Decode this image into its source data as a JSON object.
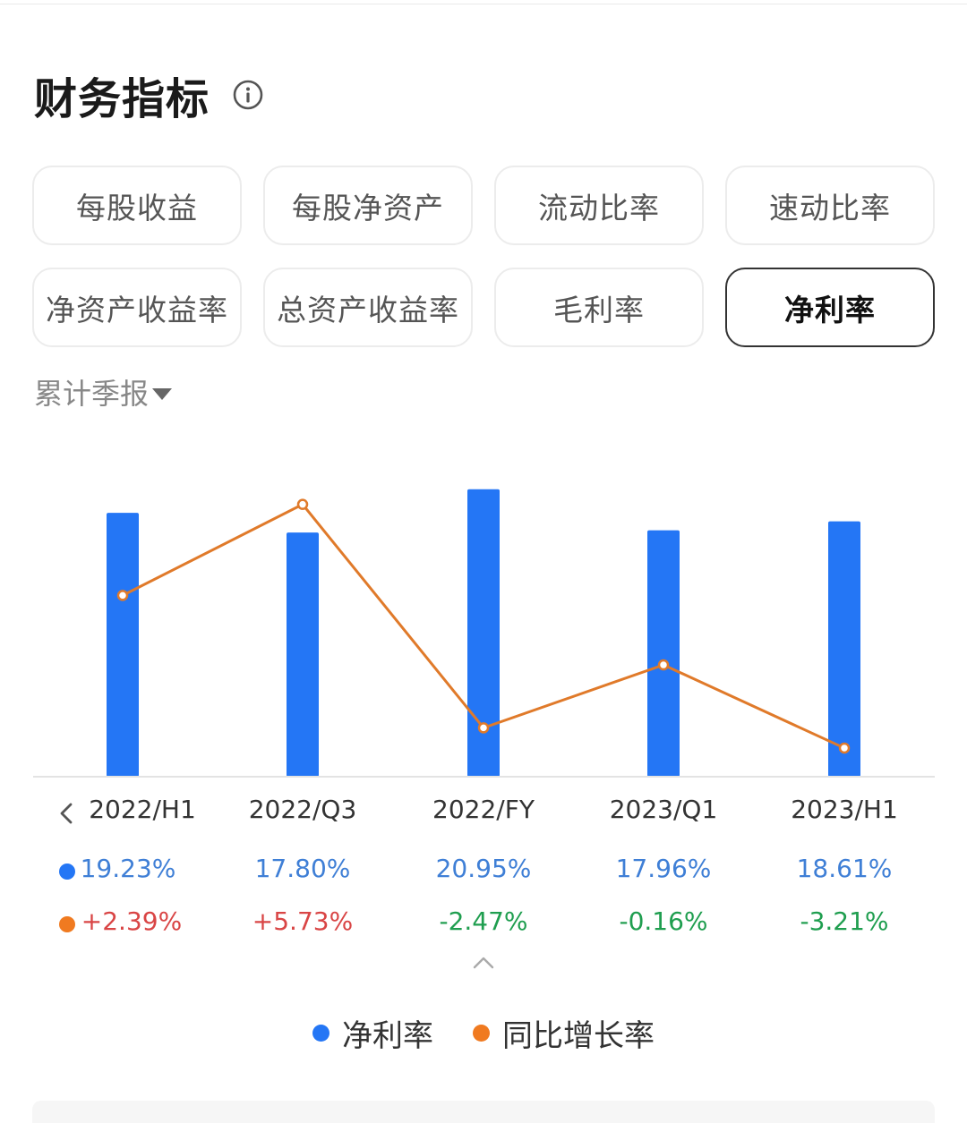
{
  "header": {
    "title": "财务指标",
    "info_icon": "info-icon"
  },
  "tabs": [
    {
      "label": "每股收益",
      "active": false
    },
    {
      "label": "每股净资产",
      "active": false
    },
    {
      "label": "流动比率",
      "active": false
    },
    {
      "label": "速动比率",
      "active": false
    },
    {
      "label": "净资产收益率",
      "active": false
    },
    {
      "label": "总资产收益率",
      "active": false
    },
    {
      "label": "毛利率",
      "active": false
    },
    {
      "label": "净利率",
      "active": true
    }
  ],
  "period_selector": {
    "label": "累计季报",
    "icon": "caret-down-icon"
  },
  "colors": {
    "bar": "#2476f5",
    "line": "#e07a2a",
    "positive": "#d94545",
    "negative": "#1f9e4f",
    "value_blue": "#3f7fd6"
  },
  "chart_data": {
    "type": "bar",
    "categories": [
      "2022/H1",
      "2022/Q3",
      "2022/FY",
      "2023/Q1",
      "2023/H1"
    ],
    "series": [
      {
        "name": "净利率",
        "type": "bar",
        "values": [
          19.23,
          17.8,
          20.95,
          17.96,
          18.61
        ],
        "labels": [
          "19.23%",
          "17.80%",
          "20.95%",
          "17.96%",
          "18.61%"
        ]
      },
      {
        "name": "同比增长率",
        "type": "line",
        "values": [
          2.39,
          5.73,
          -2.47,
          -0.16,
          -3.21
        ],
        "labels": [
          "+2.39%",
          "+5.73%",
          "-2.47%",
          "-0.16%",
          "-3.21%"
        ]
      }
    ],
    "ylim_bar": [
      0,
      21
    ],
    "ylim_line": [
      -4.0,
      7.0
    ],
    "legend_position": "bottom-center",
    "grid": false
  },
  "legend": [
    {
      "label": "净利率",
      "color": "#2476f5"
    },
    {
      "label": "同比增长率",
      "color": "#f07a20"
    }
  ],
  "controls": {
    "prev_icon": "chevron-left-icon",
    "collapse_icon": "chevron-up-icon"
  }
}
